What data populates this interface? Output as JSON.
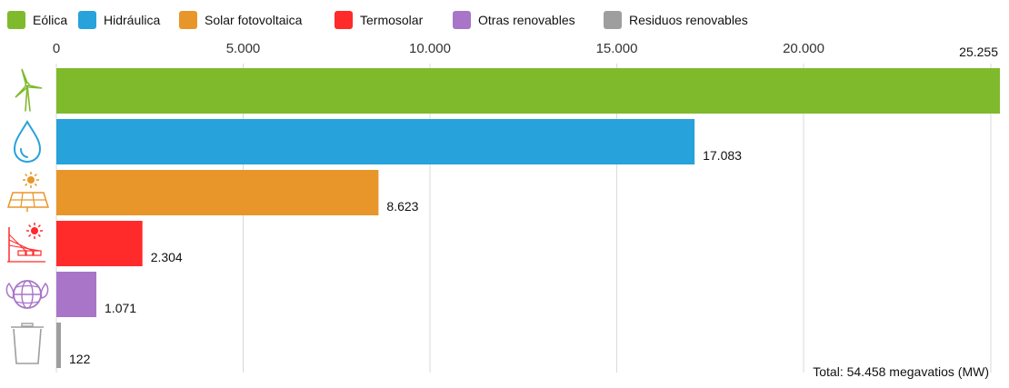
{
  "chart_data": {
    "type": "bar",
    "orientation": "horizontal",
    "categories": [
      "Eólica",
      "Hidráulica",
      "Solar fotovoltaica",
      "Termosolar",
      "Otras renovables",
      "Residuos renovables"
    ],
    "values": [
      25255,
      17083,
      8623,
      2304,
      1071,
      122
    ],
    "value_labels": [
      "25.255",
      "17.083",
      "8.623",
      "2.304",
      "1.071",
      "122"
    ],
    "colors": [
      "#7fba2c",
      "#28a2da",
      "#e8962a",
      "#ff2a2a",
      "#a875c8",
      "#9e9e9e"
    ],
    "icons": [
      "wind-turbine-icon",
      "water-drop-icon",
      "solar-panel-icon",
      "solar-thermal-icon",
      "recycle-globe-icon",
      "trash-bin-icon"
    ],
    "xticks": [
      0,
      5000,
      10000,
      15000,
      20000
    ],
    "xtick_labels": [
      "0",
      "5.000",
      "10.000",
      "15.000",
      "20.000"
    ],
    "xlim": [
      0,
      25255
    ],
    "grid": true,
    "legend_position": "top-left",
    "total_label": "Total: 54.458 megavatios (MW)"
  }
}
